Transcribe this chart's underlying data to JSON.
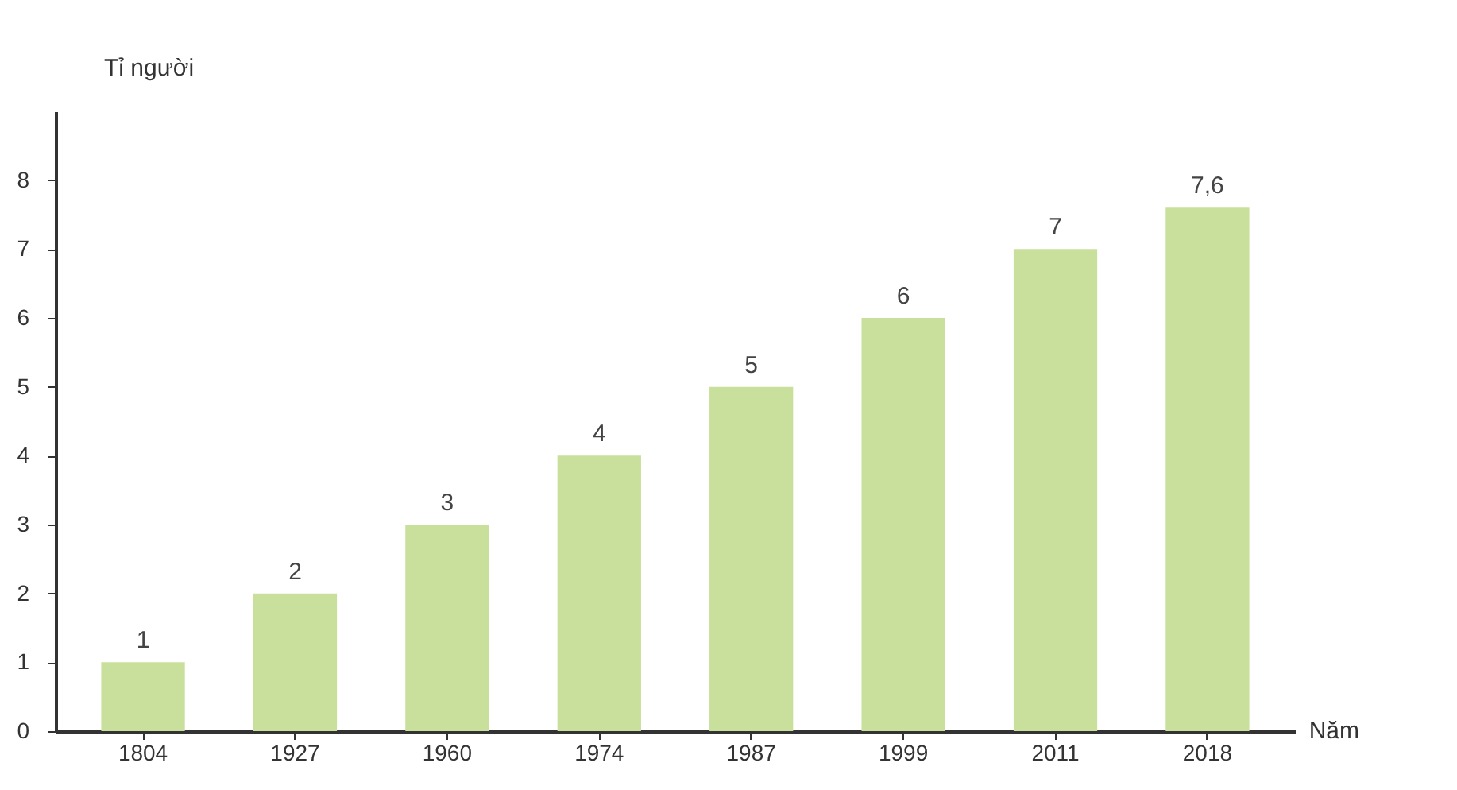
{
  "chart_data": {
    "type": "bar",
    "ylabel": "Tỉ người",
    "xlabel": "Năm",
    "categories": [
      "1804",
      "1927",
      "1960",
      "1974",
      "1987",
      "1999",
      "2011",
      "2018"
    ],
    "values": [
      1,
      2,
      3,
      4,
      5,
      6,
      7,
      7.6
    ],
    "value_labels": [
      "1",
      "2",
      "3",
      "4",
      "5",
      "6",
      "7",
      "7,6"
    ],
    "color": "#c9e09c",
    "ylim": [
      0,
      9
    ],
    "yticks": [
      0,
      1,
      2,
      3,
      4,
      5,
      6,
      7,
      8
    ],
    "grid": false
  }
}
